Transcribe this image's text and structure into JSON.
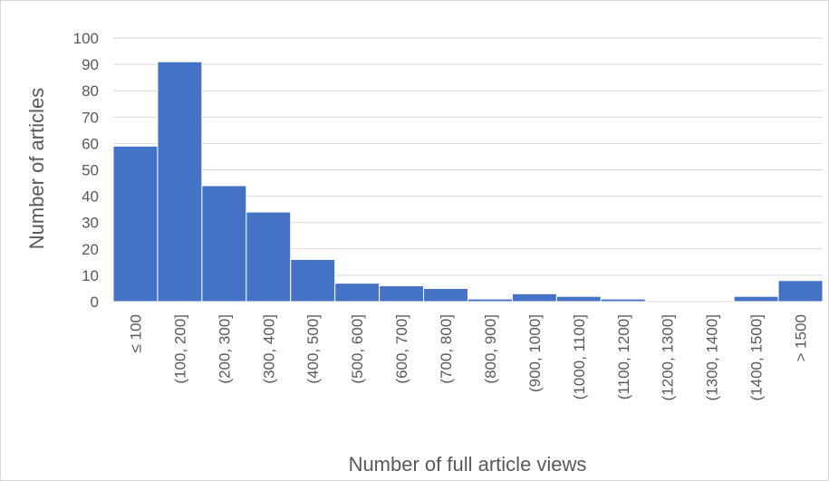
{
  "chart_data": {
    "type": "bar",
    "title": "",
    "xlabel": "Number of full article views",
    "ylabel": "Number of articles",
    "ylim": [
      0,
      100
    ],
    "yticks": [
      0,
      10,
      20,
      30,
      40,
      50,
      60,
      70,
      80,
      90,
      100
    ],
    "categories": [
      "≤ 100",
      "(100, 200]",
      "(200, 300]",
      "(300, 400]",
      "(400, 500]",
      "(500, 600]",
      "(600, 700]",
      "(700, 800]",
      "(800, 900]",
      "(900, 1000]",
      "(1000, 1100]",
      "(1100, 1200]",
      "(1200, 1300]",
      "(1300, 1400]",
      "(1400, 1500]",
      "> 1500"
    ],
    "values": [
      59,
      91,
      44,
      34,
      16,
      7,
      6,
      5,
      1,
      3,
      2,
      1,
      0,
      0,
      2,
      8
    ],
    "grid": true,
    "legend": "none",
    "bar_color": "#4472c4",
    "grid_color": "#d9d9d9"
  }
}
